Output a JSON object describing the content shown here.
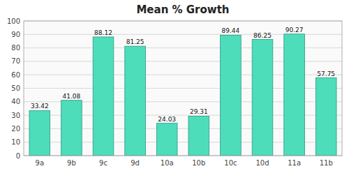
{
  "chart_data": {
    "type": "bar",
    "title": "Mean % Growth",
    "categories": [
      "9a",
      "9b",
      "9c",
      "9d",
      "10a",
      "10b",
      "10c",
      "10d",
      "11a",
      "11b"
    ],
    "values": [
      33.42,
      41.08,
      88.12,
      81.25,
      24.03,
      29.31,
      89.44,
      86.25,
      90.27,
      57.75
    ],
    "color": "#4DDDBB",
    "ylim": [
      0,
      100
    ],
    "yticks": [
      0,
      10,
      20,
      30,
      40,
      50,
      60,
      70,
      80,
      90,
      100
    ],
    "grid": true,
    "data_labels": true
  }
}
